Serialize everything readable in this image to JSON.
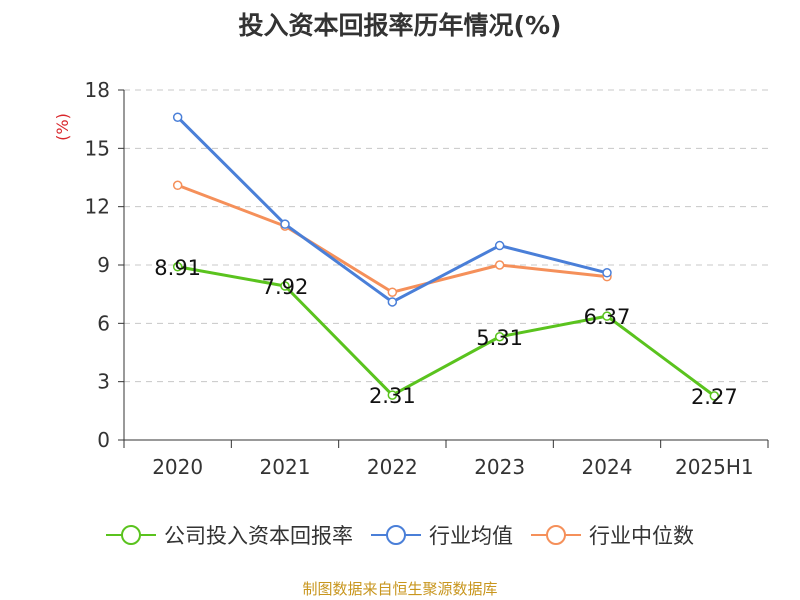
{
  "title": "投入资本回报率历年情况(%)",
  "source": "制图数据来自恒生聚源数据库",
  "chart_data": {
    "type": "line",
    "title": "投入资本回报率历年情况(%)",
    "ylabel": "(%)",
    "ylim": [
      0,
      18
    ],
    "yticks": [
      0,
      3,
      6,
      9,
      12,
      15,
      18
    ],
    "grid": true,
    "legend_position": "bottom",
    "categories": [
      "2020",
      "2021",
      "2022",
      "2023",
      "2024",
      "2025H1"
    ],
    "series": [
      {
        "name": "公司投入资本回报率",
        "color": "#5ac31e",
        "values": [
          8.91,
          7.92,
          2.31,
          5.31,
          6.37,
          2.27
        ],
        "show_labels": true
      },
      {
        "name": "行业均值",
        "color": "#4a7fd8",
        "values": [
          16.6,
          11.1,
          7.1,
          10.0,
          8.6,
          null
        ],
        "show_labels": false
      },
      {
        "name": "行业中位数",
        "color": "#f5905a",
        "values": [
          13.1,
          11.0,
          7.6,
          9.0,
          8.4,
          null
        ],
        "show_labels": false
      }
    ],
    "value_labels": [
      "8.91",
      "7.92",
      "2.31",
      "5.31",
      "6.37",
      "2.27"
    ]
  }
}
